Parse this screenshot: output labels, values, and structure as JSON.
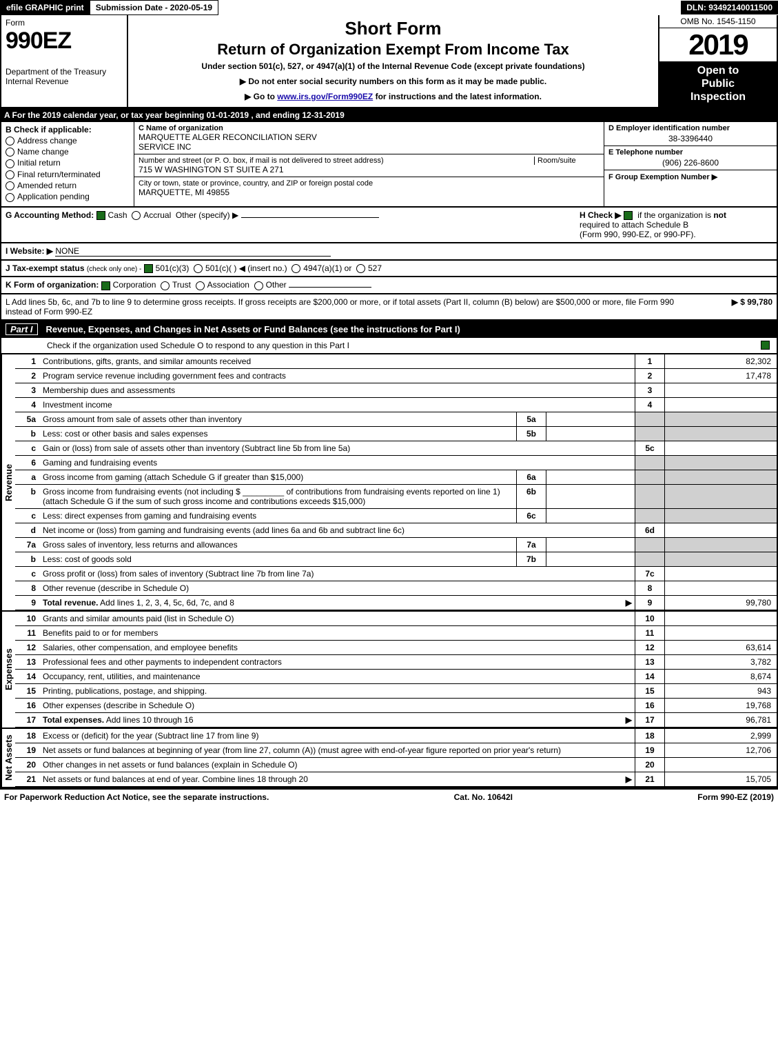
{
  "topbar": {
    "efile": "efile GRAPHIC print",
    "submission": "Submission Date - 2020-05-19",
    "dln": "DLN: 93492140011500"
  },
  "header": {
    "form_label": "Form",
    "form_num": "990EZ",
    "dept": "Department of the Treasury",
    "irs": "Internal Revenue",
    "short_form": "Short Form",
    "title": "Return of Organization Exempt From Income Tax",
    "under_section": "Under section 501(c), 527, or 4947(a)(1) of the Internal Revenue Code (except private foundations)",
    "do_not": "▶ Do not enter social security numbers on this form as it may be made public.",
    "goto_pre": "▶ Go to ",
    "goto_link": "www.irs.gov/Form990EZ",
    "goto_post": " for instructions and the latest information.",
    "omb": "OMB No. 1545-1150",
    "year": "2019",
    "open1": "Open to",
    "open2": "Public",
    "open3": "Inspection"
  },
  "lineA": "A  For the 2019 calendar year, or tax year beginning 01-01-2019 , and ending 12-31-2019",
  "boxB": {
    "title": "B  Check if applicable:",
    "items": [
      "Address change",
      "Name change",
      "Initial return",
      "Final return/terminated",
      "Amended return",
      "Application pending"
    ]
  },
  "boxC": {
    "name_label": "C Name of organization",
    "name1": "MARQUETTE ALGER RECONCILIATION SERV",
    "name2": "SERVICE INC",
    "street_label": "Number and street (or P. O. box, if mail is not delivered to street address)",
    "room_label": "Room/suite",
    "street": "715 W WASHINGTON ST SUITE A 271",
    "city_label": "City or town, state or province, country, and ZIP or foreign postal code",
    "city": "MARQUETTE, MI  49855"
  },
  "boxD": {
    "ein_label": "D Employer identification number",
    "ein": "38-3396440",
    "tel_label": "E Telephone number",
    "tel": "(906) 226-8600",
    "grp_label": "F Group Exemption Number   ▶"
  },
  "lineG": {
    "label": "G Accounting Method:",
    "cash": "Cash",
    "accrual": "Accrual",
    "other": "Other (specify) ▶"
  },
  "lineH": {
    "label": "H  Check ▶",
    "text1": "if the organization is ",
    "not": "not",
    "text2": "required to attach Schedule B",
    "text3": "(Form 990, 990-EZ, or 990-PF)."
  },
  "lineI": {
    "label": "I Website: ▶",
    "value": "NONE"
  },
  "lineJ": {
    "label": "J Tax-exempt status",
    "sub": "(check only one) -",
    "opt1": "501(c)(3)",
    "opt2": "501(c)(  ) ◀ (insert no.)",
    "opt3": "4947(a)(1) or",
    "opt4": "527"
  },
  "lineK": {
    "label": "K Form of organization:",
    "opts": [
      "Corporation",
      "Trust",
      "Association",
      "Other"
    ]
  },
  "lineL": {
    "text": "L Add lines 5b, 6c, and 7b to line 9 to determine gross receipts. If gross receipts are $200,000 or more, or if total assets (Part II, column (B) below) are $500,000 or more, file Form 990 instead of Form 990-EZ",
    "amount": "▶ $ 99,780"
  },
  "part1": {
    "label": "Part I",
    "title": "Revenue, Expenses, and Changes in Net Assets or Fund Balances (see the instructions for Part I)",
    "check_text": "Check if the organization used Schedule O to respond to any question in this Part I"
  },
  "revenue_lines": [
    {
      "num": "1",
      "label": "Contributions, gifts, grants, and similar amounts received",
      "box": "1",
      "amt": "82,302"
    },
    {
      "num": "2",
      "label": "Program service revenue including government fees and contracts",
      "box": "2",
      "amt": "17,478"
    },
    {
      "num": "3",
      "label": "Membership dues and assessments",
      "box": "3",
      "amt": ""
    },
    {
      "num": "4",
      "label": "Investment income",
      "box": "4",
      "amt": ""
    },
    {
      "num": "5a",
      "label": "Gross amount from sale of assets other than inventory",
      "inbox": "5a"
    },
    {
      "num": "b",
      "label": "Less: cost or other basis and sales expenses",
      "inbox": "5b"
    },
    {
      "num": "c",
      "label": "Gain or (loss) from sale of assets other than inventory (Subtract line 5b from line 5a)",
      "box": "5c",
      "amt": ""
    },
    {
      "num": "6",
      "label": "Gaming and fundraising events",
      "nobox": true
    },
    {
      "num": "a",
      "label": "Gross income from gaming (attach Schedule G if greater than $15,000)",
      "inbox": "6a"
    },
    {
      "num": "b",
      "label": "Gross income from fundraising events (not including $ _________ of contributions from fundraising events reported on line 1) (attach Schedule G if the sum of such gross income and contributions exceeds $15,000)",
      "inbox": "6b"
    },
    {
      "num": "c",
      "label": "Less: direct expenses from gaming and fundraising events",
      "inbox": "6c"
    },
    {
      "num": "d",
      "label": "Net income or (loss) from gaming and fundraising events (add lines 6a and 6b and subtract line 6c)",
      "box": "6d",
      "amt": ""
    },
    {
      "num": "7a",
      "label": "Gross sales of inventory, less returns and allowances",
      "inbox": "7a"
    },
    {
      "num": "b",
      "label": "Less: cost of goods sold",
      "inbox": "7b"
    },
    {
      "num": "c",
      "label": "Gross profit or (loss) from sales of inventory (Subtract line 7b from line 7a)",
      "box": "7c",
      "amt": ""
    },
    {
      "num": "8",
      "label": "Other revenue (describe in Schedule O)",
      "box": "8",
      "amt": ""
    },
    {
      "num": "9",
      "label": "Total revenue. Add lines 1, 2, 3, 4, 5c, 6d, 7c, and 8",
      "box": "9",
      "amt": "99,780",
      "bold": true,
      "arrow": true
    }
  ],
  "expense_lines": [
    {
      "num": "10",
      "label": "Grants and similar amounts paid (list in Schedule O)",
      "box": "10",
      "amt": ""
    },
    {
      "num": "11",
      "label": "Benefits paid to or for members",
      "box": "11",
      "amt": ""
    },
    {
      "num": "12",
      "label": "Salaries, other compensation, and employee benefits",
      "box": "12",
      "amt": "63,614"
    },
    {
      "num": "13",
      "label": "Professional fees and other payments to independent contractors",
      "box": "13",
      "amt": "3,782"
    },
    {
      "num": "14",
      "label": "Occupancy, rent, utilities, and maintenance",
      "box": "14",
      "amt": "8,674"
    },
    {
      "num": "15",
      "label": "Printing, publications, postage, and shipping.",
      "box": "15",
      "amt": "943"
    },
    {
      "num": "16",
      "label": "Other expenses (describe in Schedule O)",
      "box": "16",
      "amt": "19,768"
    },
    {
      "num": "17",
      "label": "Total expenses. Add lines 10 through 16",
      "box": "17",
      "amt": "96,781",
      "bold": true,
      "arrow": true
    }
  ],
  "netassets_lines": [
    {
      "num": "18",
      "label": "Excess or (deficit) for the year (Subtract line 17 from line 9)",
      "box": "18",
      "amt": "2,999"
    },
    {
      "num": "19",
      "label": "Net assets or fund balances at beginning of year (from line 27, column (A)) (must agree with end-of-year figure reported on prior year's return)",
      "box": "19",
      "amt": "12,706"
    },
    {
      "num": "20",
      "label": "Other changes in net assets or fund balances (explain in Schedule O)",
      "box": "20",
      "amt": ""
    },
    {
      "num": "21",
      "label": "Net assets or fund balances at end of year. Combine lines 18 through 20",
      "box": "21",
      "amt": "15,705",
      "arrow": true
    }
  ],
  "section_labels": {
    "revenue": "Revenue",
    "expenses": "Expenses",
    "netassets": "Net Assets"
  },
  "footer": {
    "left": "For Paperwork Reduction Act Notice, see the separate instructions.",
    "mid": "Cat. No. 10642I",
    "right": "Form 990-EZ (2019)"
  }
}
